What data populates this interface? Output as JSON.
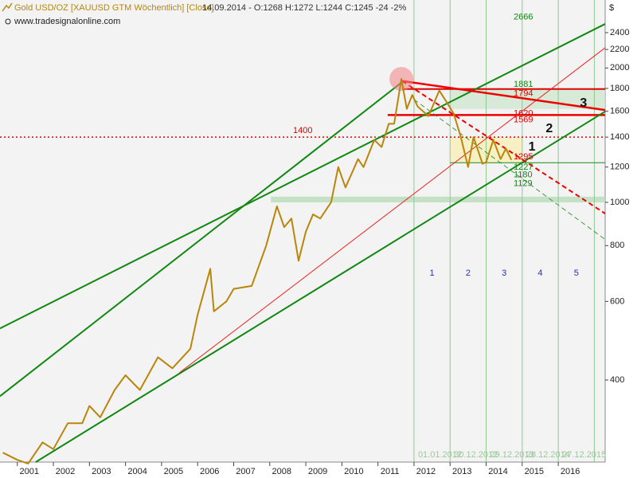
{
  "chart_data": {
    "type": "line",
    "title": "Gold USD/OZ [XAUUSD GTM  Wöchentlich] [Close]",
    "quote": "14.09.2014 - O:1268 H:1272 L:1244 C:1245 -24 -2%",
    "subtitle": "www.tradesignalonline.com",
    "y_unit": "$",
    "log_scale": true,
    "xlim": [
      2000.52,
      2017.3
    ],
    "xticks": [
      2001,
      2002,
      2003,
      2004,
      2005,
      2006,
      2007,
      2008,
      2009,
      2010,
      2011,
      2012,
      2013,
      2014,
      2015,
      2016
    ],
    "ylim": [
      262,
      2840
    ],
    "yticks": [
      400,
      600,
      800,
      1000,
      1200,
      1400,
      1600,
      1800,
      2000,
      2200,
      2400
    ],
    "x": [
      2000.6,
      2001.0,
      2001.3,
      2001.7,
      2002.0,
      2002.4,
      2002.8,
      2003.0,
      2003.3,
      2003.7,
      2004.0,
      2004.4,
      2004.9,
      2005.3,
      2005.8,
      2006.0,
      2006.35,
      2006.45,
      2006.8,
      2007.0,
      2007.5,
      2007.9,
      2008.2,
      2008.4,
      2008.6,
      2008.8,
      2009.0,
      2009.2,
      2009.4,
      2009.7,
      2009.9,
      2010.1,
      2010.45,
      2010.6,
      2010.9,
      2011.1,
      2011.3,
      2011.45,
      2011.65,
      2011.8,
      2011.95,
      2012.1,
      2012.4,
      2012.7,
      2012.9,
      2013.1,
      2013.3,
      2013.5,
      2013.65,
      2013.9,
      2014.0,
      2014.2,
      2014.4,
      2014.55,
      2014.7
    ],
    "series": [
      {
        "color": "#b8860b",
        "values": [
          275,
          265,
          260,
          290,
          280,
          320,
          320,
          350,
          330,
          380,
          410,
          380,
          450,
          425,
          470,
          560,
          710,
          570,
          600,
          640,
          650,
          800,
          980,
          880,
          920,
          740,
          860,
          940,
          920,
          1000,
          1200,
          1080,
          1250,
          1200,
          1380,
          1330,
          1500,
          1500,
          1890,
          1620,
          1740,
          1640,
          1560,
          1780,
          1680,
          1580,
          1400,
          1200,
          1400,
          1220,
          1230,
          1380,
          1250,
          1320,
          1245
        ]
      }
    ],
    "zones": [
      {
        "from": 2013.0,
        "to": 2017.3,
        "low": 1620,
        "high": 1794,
        "color": "#cfe6cf"
      },
      {
        "from": 2013.0,
        "to": 2015.0,
        "low": 1227,
        "high": 1400,
        "color": "#f7efb8"
      },
      {
        "from": 2008.03,
        "to": 2017.3,
        "low": 1000,
        "high": 1030,
        "color": "#b9dcb9"
      }
    ],
    "levels": [
      {
        "value": 1400,
        "from": 2000.52,
        "to": 2017.3,
        "color": "#dd0000",
        "width": 1.5,
        "dash": true
      },
      {
        "value": 1794,
        "from": 2011.67,
        "to": 2017.3,
        "color": "#dd0000",
        "width": 2,
        "dash": false
      },
      {
        "value": 1569,
        "from": 2011.27,
        "to": 2017.3,
        "color": "#ee0000",
        "width": 2.5,
        "dash": false
      },
      {
        "value": 1227,
        "from": 2013.0,
        "to": 2017.3,
        "color": "#1a8a1a",
        "width": 1,
        "dash": false
      }
    ],
    "trendlines": [
      {
        "from": [
          2000.52,
          522
        ],
        "to": [
          2017.3,
          2510
        ],
        "color": "#118811",
        "width": 2,
        "dash": false
      },
      {
        "from": [
          2000.52,
          368
        ],
        "to": [
          2011.67,
          1860
        ],
        "color": "#118811",
        "width": 2,
        "dash": false
      },
      {
        "from": [
          2001.51,
          262
        ],
        "to": [
          2017.3,
          1598
        ],
        "color": "#118811",
        "width": 2,
        "dash": false
      },
      {
        "from": [
          2005.49,
          415
        ],
        "to": [
          2017.3,
          2220
        ],
        "color": "#ee2222",
        "width": 1,
        "dash": false
      },
      {
        "from": [
          2011.67,
          1870
        ],
        "to": [
          2017.3,
          1610
        ],
        "color": "#ee0000",
        "width": 2.5,
        "dash": false
      },
      {
        "from": [
          2011.67,
          1870
        ],
        "to": [
          2017.3,
          944
        ],
        "color": "#ee0000",
        "width": 2,
        "dash": true
      },
      {
        "from": [
          2012.0,
          1700
        ],
        "to": [
          2017.3,
          826
        ],
        "color": "#118811",
        "width": 0.8,
        "dash": true
      }
    ],
    "price_labels": [
      {
        "value": 2666,
        "color": "#118811"
      },
      {
        "value": 1881,
        "color": "#118811"
      },
      {
        "value": 1794,
        "color": "#dd0000"
      },
      {
        "value": 1620,
        "color": "#dd0000"
      },
      {
        "value": 1569,
        "color": "#dd0000"
      },
      {
        "value": 1295,
        "color": "#dd0000"
      },
      {
        "value": 1227,
        "color": "#118811"
      },
      {
        "value": 1180,
        "color": "#118811"
      },
      {
        "value": 1129,
        "color": "#118811"
      }
    ],
    "level_label": 1400,
    "cycle_lines": [
      2012.0,
      2013.0,
      2014.0,
      2015.0,
      2016.0,
      2017.0
    ],
    "cycle_dates": [
      "01.01.2012",
      "30.12.2012",
      "29.12.2013",
      "28.12.2014",
      "27.12.2015",
      null
    ],
    "cycle_numbers": [
      1,
      2,
      3,
      4,
      5
    ],
    "peak": [
      2011.65,
      1890
    ],
    "wave_labels": [
      {
        "label": "1",
        "x": 2015.27,
        "y": 1328
      },
      {
        "label": "2",
        "x": 2015.75,
        "y": 1460
      },
      {
        "label": "3",
        "x": 2016.7,
        "y": 1665
      }
    ]
  }
}
